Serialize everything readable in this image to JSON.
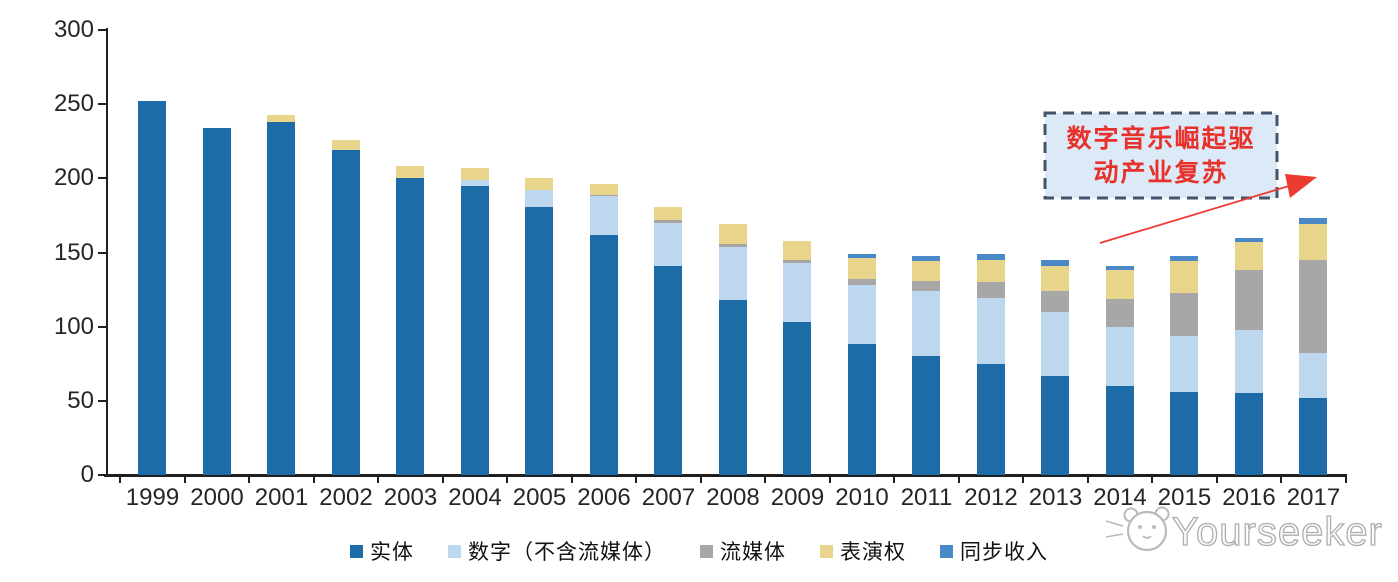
{
  "chart_data": {
    "type": "bar",
    "stacked": true,
    "title": "",
    "xlabel": "",
    "ylabel": "",
    "ylim": [
      0,
      300
    ],
    "yticks": [
      0,
      50,
      100,
      150,
      200,
      250,
      300
    ],
    "grid": false,
    "legend_position": "bottom",
    "categories": [
      "1999",
      "2000",
      "2001",
      "2002",
      "2003",
      "2004",
      "2005",
      "2006",
      "2007",
      "2008",
      "2009",
      "2010",
      "2011",
      "2012",
      "2013",
      "2014",
      "2015",
      "2016",
      "2017"
    ],
    "series": [
      {
        "key": "physical",
        "name": "实体",
        "color": "#1E6CA7",
        "values": [
          252,
          234,
          238,
          219,
          200,
          195,
          181,
          162,
          141,
          118,
          103,
          88,
          80,
          75,
          67,
          60,
          56,
          55,
          52
        ]
      },
      {
        "key": "digital",
        "name": "数字（不含流媒体）",
        "color": "#BDD7EE",
        "values": [
          0,
          0,
          0,
          0,
          0,
          4,
          11,
          26,
          29,
          36,
          40,
          40,
          44,
          44,
          43,
          40,
          38,
          43,
          30
        ]
      },
      {
        "key": "streaming",
        "name": "流媒体",
        "color": "#A7A7A7",
        "values": [
          0,
          0,
          0,
          0,
          0,
          0,
          0,
          1,
          2,
          2,
          2,
          4,
          7,
          11,
          14,
          19,
          29,
          40,
          63
        ]
      },
      {
        "key": "performance",
        "name": "表演权",
        "color": "#E9D48C",
        "values": [
          0,
          0,
          5,
          7,
          8,
          8,
          8,
          7,
          9,
          13,
          13,
          14,
          13,
          15,
          17,
          19,
          21,
          19,
          24
        ]
      },
      {
        "key": "sync",
        "name": "同步收入",
        "color": "#4A89C8",
        "values": [
          0,
          0,
          0,
          0,
          0,
          0,
          0,
          0,
          0,
          0,
          0,
          3,
          4,
          4,
          4,
          3,
          4,
          3,
          4
        ]
      }
    ]
  },
  "annotation": {
    "line1": "数字音乐崛起驱",
    "line2": "动产业复苏",
    "text_color": "#E8312A",
    "box_fill": "#DCE9F7",
    "box_border": "#44546A",
    "arrow_color": "#EC3C32"
  },
  "watermark": {
    "text": "Yourseeker",
    "color": "#A6A6A6"
  }
}
